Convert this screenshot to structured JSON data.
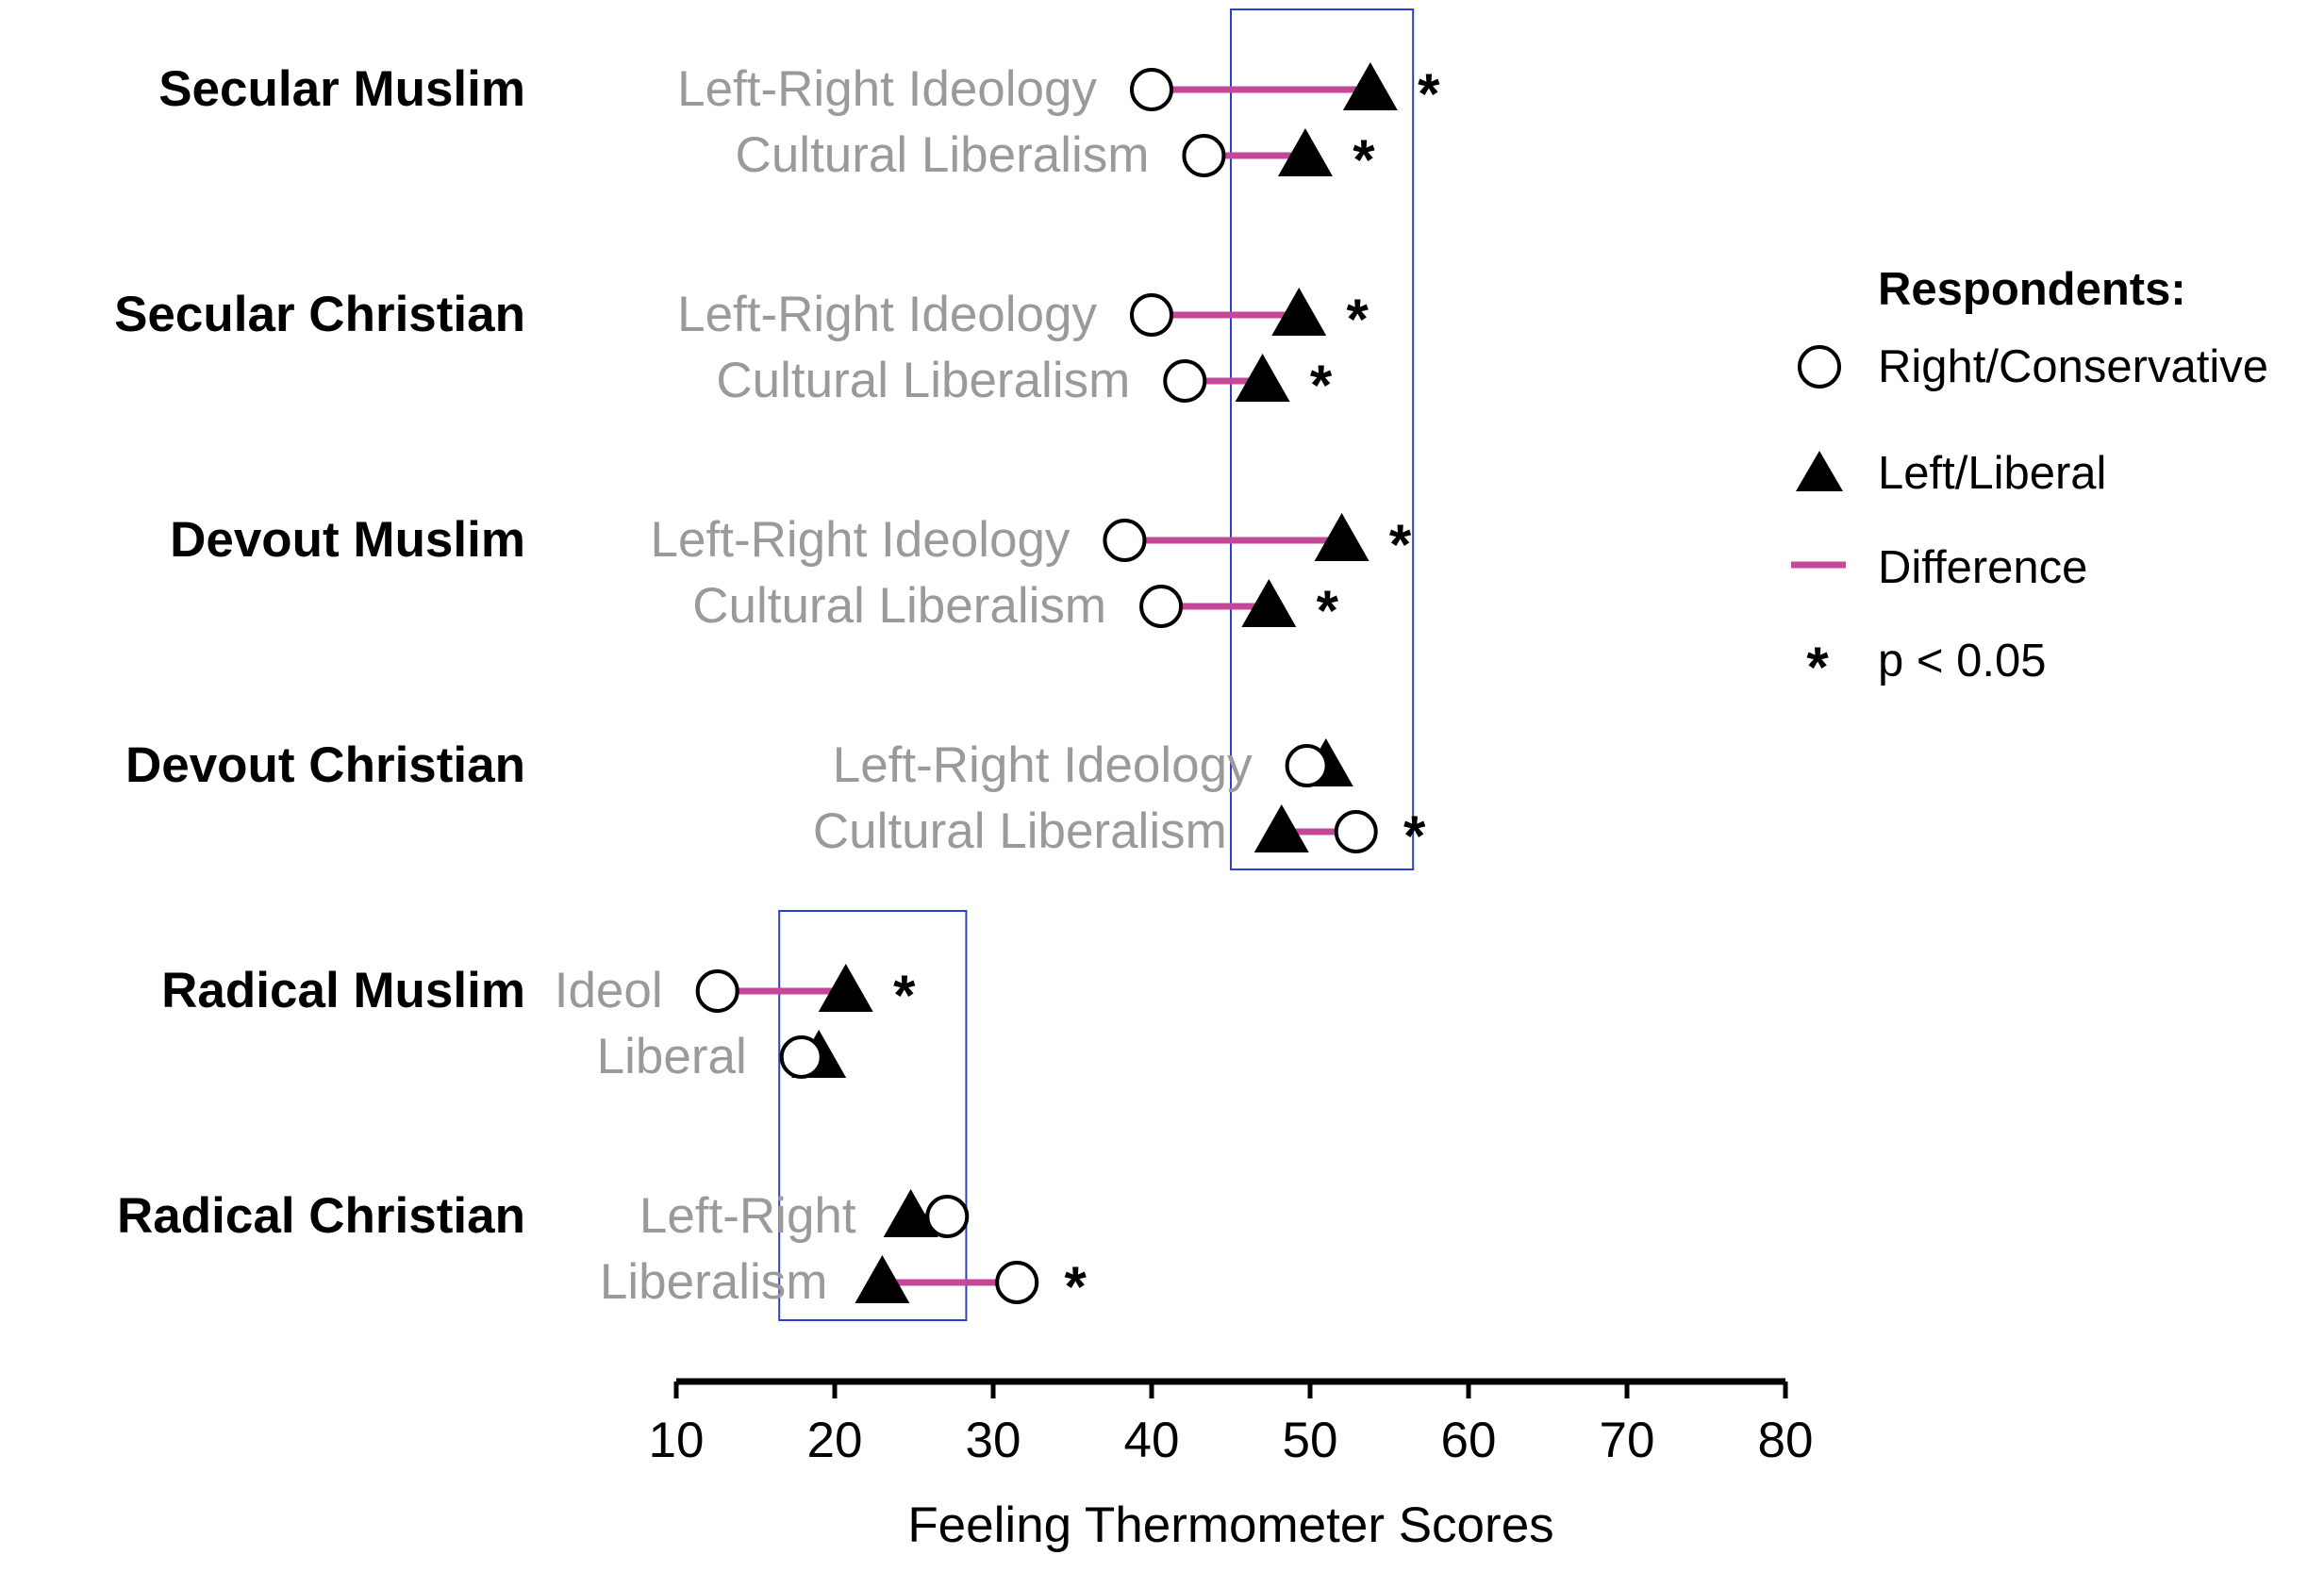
{
  "chart_data": {
    "type": "scatter",
    "xlabel": "Feeling Thermometer Scores",
    "xlim": [
      10,
      80
    ],
    "xticks": [
      10,
      20,
      30,
      40,
      50,
      60,
      70,
      80
    ],
    "groups": [
      {
        "name": "Secular Muslim",
        "rows": [
          {
            "label": "Left-Right Ideology",
            "right_conservative": 40,
            "left_liberal": 53.8,
            "significant": true
          },
          {
            "label": "Cultural Liberalism",
            "right_conservative": 43.3,
            "left_liberal": 49.7,
            "significant": true
          }
        ]
      },
      {
        "name": "Secular Christian",
        "rows": [
          {
            "label": "Left-Right Ideology",
            "right_conservative": 40,
            "left_liberal": 49.3,
            "significant": true
          },
          {
            "label": "Cultural Liberalism",
            "right_conservative": 42.1,
            "left_liberal": 47,
            "significant": true
          }
        ]
      },
      {
        "name": "Devout Muslim",
        "rows": [
          {
            "label": "Left-Right Ideology",
            "right_conservative": 38.3,
            "left_liberal": 52,
            "significant": true
          },
          {
            "label": "Cultural Liberalism",
            "right_conservative": 40.6,
            "left_liberal": 47.4,
            "significant": true
          }
        ]
      },
      {
        "name": "Devout Christian",
        "rows": [
          {
            "label": "Left-Right Ideology",
            "right_conservative": 49.8,
            "left_liberal": 51,
            "significant": false
          },
          {
            "label": "Cultural Liberalism",
            "right_conservative": 52.9,
            "left_liberal": 48.2,
            "significant": true
          }
        ]
      },
      {
        "name": "Radical Muslim",
        "rows": [
          {
            "label": "Ideol",
            "right_conservative": 12.6,
            "left_liberal": 20.7,
            "significant": true
          },
          {
            "label": "Liberal",
            "right_conservative": 17.9,
            "left_liberal": 19,
            "significant": false
          }
        ]
      },
      {
        "name": "Radical Christian",
        "rows": [
          {
            "label": "Left-Right",
            "right_conservative": 27.1,
            "left_liberal": 24.8,
            "significant": false
          },
          {
            "label": "Liberalism",
            "right_conservative": 31.5,
            "left_liberal": 23,
            "significant": true
          }
        ]
      }
    ],
    "highlight_ranges": [
      [
        45,
        56.5
      ],
      [
        16.5,
        28.3
      ]
    ],
    "legend": {
      "title": "Respondents:",
      "entries": [
        "Right/Conservative",
        "Left/Liberal",
        "Difference",
        "p < 0.05"
      ],
      "placement": "right"
    },
    "significance_marker": "*",
    "colors": {
      "difference_line": "#c4479a",
      "highlight_box": "#2a3fd4",
      "row_label": "#9a9a9a"
    }
  }
}
